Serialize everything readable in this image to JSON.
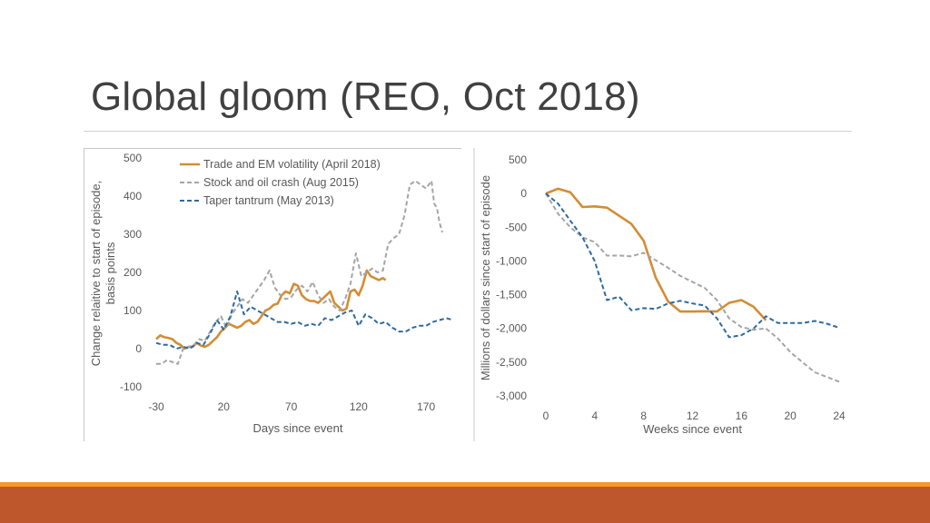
{
  "slide": {
    "title": "Global gloom (REO, Oct 2018)",
    "colors": {
      "footer_band": "#bf572c",
      "footer_thin": "#f39a2b",
      "title_rule": "#d0d0d0"
    }
  },
  "chart_data": [
    {
      "type": "line",
      "xlabel": "Days since event",
      "ylabel": "Change relaitive to start of episode, basis points",
      "x_ticks": [
        -30,
        20,
        70,
        120,
        170
      ],
      "y_ticks": [
        -100,
        0,
        100,
        200,
        300,
        400,
        500
      ],
      "xlim": [
        -30,
        180
      ],
      "ylim": [
        -100,
        500
      ],
      "legend_position": "top-left",
      "grid": false,
      "series": [
        {
          "name": "Trade and EM volatility (April 2018)",
          "color": "#d28d35",
          "dash": "solid",
          "x": [
            -30,
            -27,
            -24,
            -21,
            -18,
            -15,
            -12,
            -9,
            -6,
            -3,
            0,
            3,
            6,
            9,
            12,
            15,
            18,
            21,
            24,
            27,
            30,
            33,
            36,
            39,
            42,
            45,
            48,
            51,
            54,
            57,
            60,
            63,
            66,
            69,
            72,
            75,
            78,
            81,
            84,
            87,
            90,
            93,
            96,
            99,
            102,
            105,
            108,
            111,
            114,
            117,
            120,
            123,
            126,
            129,
            132,
            135,
            138,
            140
          ],
          "y": [
            25,
            35,
            30,
            28,
            25,
            15,
            10,
            0,
            5,
            5,
            15,
            8,
            5,
            10,
            20,
            30,
            45,
            55,
            65,
            60,
            55,
            60,
            70,
            75,
            65,
            70,
            85,
            100,
            105,
            115,
            118,
            140,
            150,
            145,
            170,
            165,
            140,
            130,
            125,
            125,
            120,
            130,
            140,
            150,
            120,
            110,
            100,
            105,
            150,
            155,
            140,
            165,
            205,
            190,
            185,
            180,
            185,
            180
          ],
          "source_note": "estimated from plot"
        },
        {
          "name": "Stock and oil crash (Aug 2015)",
          "color": "#a5a5a5",
          "dash": "dashed",
          "x": [
            -30,
            -26,
            -22,
            -18,
            -14,
            -10,
            -6,
            -2,
            2,
            6,
            10,
            14,
            18,
            22,
            26,
            30,
            34,
            38,
            42,
            46,
            50,
            54,
            58,
            62,
            66,
            70,
            74,
            78,
            82,
            86,
            90,
            94,
            98,
            102,
            106,
            110,
            114,
            118,
            122,
            126,
            130,
            134,
            138,
            142,
            146,
            150,
            154,
            158,
            162,
            166,
            170,
            174,
            176,
            178,
            180,
            182
          ],
          "y": [
            -40,
            -40,
            -30,
            -35,
            -40,
            0,
            5,
            10,
            25,
            20,
            45,
            70,
            85,
            55,
            90,
            110,
            130,
            120,
            140,
            160,
            180,
            205,
            160,
            140,
            130,
            135,
            155,
            165,
            150,
            175,
            140,
            120,
            130,
            110,
            100,
            130,
            170,
            250,
            190,
            200,
            210,
            200,
            205,
            275,
            290,
            300,
            350,
            430,
            440,
            430,
            420,
            440,
            380,
            370,
            330,
            305
          ],
          "source_note": "estimated from plot"
        },
        {
          "name": "Taper tantrum (May 2013)",
          "color": "#2e6a9e",
          "dash": "dashed",
          "x": [
            -30,
            -25,
            -20,
            -15,
            -10,
            -5,
            0,
            5,
            10,
            15,
            20,
            25,
            30,
            35,
            40,
            45,
            50,
            55,
            60,
            65,
            70,
            75,
            80,
            85,
            90,
            95,
            100,
            105,
            110,
            115,
            120,
            125,
            130,
            135,
            140,
            145,
            150,
            155,
            160,
            165,
            170,
            175,
            180,
            185,
            190
          ],
          "y": [
            15,
            10,
            10,
            0,
            5,
            0,
            15,
            10,
            40,
            75,
            50,
            85,
            150,
            90,
            110,
            100,
            90,
            80,
            70,
            70,
            65,
            70,
            60,
            65,
            60,
            80,
            75,
            85,
            95,
            100,
            60,
            90,
            80,
            65,
            70,
            55,
            45,
            45,
            55,
            60,
            60,
            70,
            75,
            80,
            75
          ],
          "source_note": "estimated from plot"
        }
      ]
    },
    {
      "type": "line",
      "xlabel": "Weeks since event",
      "ylabel": "Millions of dollars since start of episode",
      "x_ticks": [
        0,
        4,
        8,
        12,
        16,
        20,
        24
      ],
      "y_ticks": [
        500,
        0,
        -500,
        -1000,
        -1500,
        -2000,
        -2500,
        -3000
      ],
      "y_tick_labels": [
        "500",
        "0",
        "-500",
        "-1,000",
        "-1,500",
        "-2,000",
        "-2,500",
        "-3,000"
      ],
      "xlim": [
        0,
        24
      ],
      "ylim": [
        -3000,
        500
      ],
      "legend_position": "none",
      "grid": false,
      "series": [
        {
          "color": "#d28d35",
          "dash": "solid",
          "x": [
            0,
            1,
            2,
            3,
            4,
            5,
            6,
            7,
            8,
            9,
            10,
            11,
            12,
            13,
            14,
            15,
            16,
            17,
            18
          ],
          "y": [
            0,
            70,
            20,
            -200,
            -190,
            -210,
            -330,
            -450,
            -700,
            -1250,
            -1600,
            -1750,
            -1750,
            -1745,
            -1750,
            -1620,
            -1580,
            -1680,
            -1880
          ],
          "source_note": "estimated from plot"
        },
        {
          "color": "#a5a5a5",
          "dash": "dashed",
          "x": [
            0,
            1,
            2,
            3,
            4,
            5,
            6,
            7,
            8,
            9,
            10,
            11,
            12,
            13,
            14,
            15,
            16,
            17,
            18,
            19,
            20,
            21,
            22,
            23,
            24
          ],
          "y": [
            0,
            -300,
            -500,
            -650,
            -720,
            -920,
            -920,
            -930,
            -880,
            -990,
            -1100,
            -1220,
            -1310,
            -1400,
            -1580,
            -1850,
            -1980,
            -2020,
            -2000,
            -2150,
            -2350,
            -2500,
            -2650,
            -2720,
            -2790
          ],
          "source_note": "estimated from plot"
        },
        {
          "color": "#2e6a9e",
          "dash": "dashed",
          "x": [
            0,
            1,
            2,
            3,
            4,
            5,
            6,
            7,
            8,
            9,
            10,
            11,
            12,
            13,
            14,
            15,
            16,
            17,
            18,
            19,
            20,
            21,
            22,
            23,
            24
          ],
          "y": [
            0,
            -150,
            -400,
            -650,
            -1000,
            -1580,
            -1530,
            -1730,
            -1700,
            -1710,
            -1630,
            -1590,
            -1630,
            -1660,
            -1850,
            -2130,
            -2100,
            -2000,
            -1820,
            -1920,
            -1920,
            -1920,
            -1890,
            -1930,
            -1990
          ],
          "source_note": "estimated from plot"
        }
      ]
    }
  ]
}
